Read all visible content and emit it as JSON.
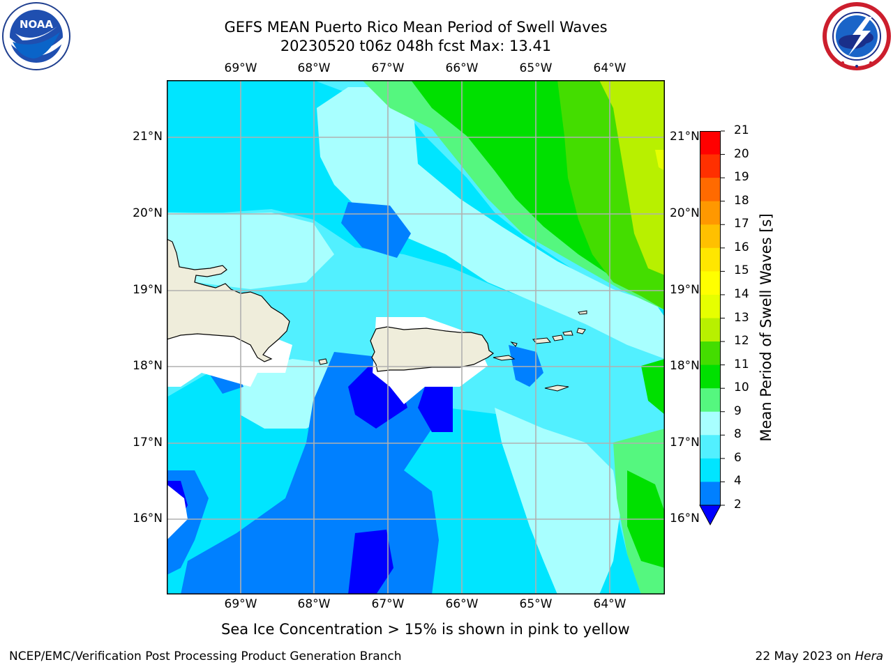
{
  "header": {
    "title_line1": "GEFS MEAN Puerto Rico Mean Period of Swell Waves",
    "title_line2": "20230520 t06z 048h fcst   Max: 13.41"
  },
  "logos": {
    "left": {
      "icon": "noaa-logo",
      "text": "NOAA"
    },
    "right": {
      "icon": "nws-logo"
    }
  },
  "map": {
    "longitude_labels": [
      "69°W",
      "68°W",
      "67°W",
      "66°W",
      "65°W",
      "64°W"
    ],
    "latitude_labels": [
      "21°N",
      "20°N",
      "19°N",
      "18°N",
      "17°N",
      "16°N"
    ],
    "land_color": "#efeddb",
    "coast_color": "#000000",
    "grid_color": "#b0b0b0"
  },
  "colorbar": {
    "label": "Mean Period of Swell Waves [s]",
    "ticks": [
      "2",
      "4",
      "6",
      "8",
      "9",
      "10",
      "11",
      "12",
      "13",
      "14",
      "15",
      "16",
      "17",
      "18",
      "19",
      "20",
      "21"
    ],
    "colors": [
      "#0000ff",
      "#0080ff",
      "#00e5ff",
      "#52f0ff",
      "#a8ffff",
      "#55f77f",
      "#00e000",
      "#44dd00",
      "#b8f000",
      "#e6ff00",
      "#ffff00",
      "#ffe600",
      "#ffc000",
      "#ff9800",
      "#ff6a00",
      "#ff3000",
      "#ff0000"
    ]
  },
  "note": "Sea Ice Concentration > 15% is shown in pink to yellow",
  "footer": {
    "left": "NCEP/EMC/Verification Post Processing Product Generation Branch",
    "date": "22 May 2023 on ",
    "machine": "Hera"
  }
}
